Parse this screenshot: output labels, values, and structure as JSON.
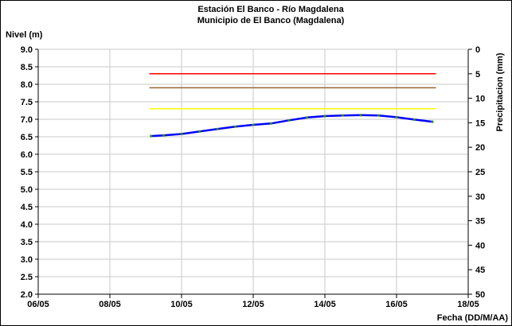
{
  "chart_data": {
    "type": "line",
    "title": "Estación El Banco - Río Magdalena",
    "subtitle": "Municipio de El Banco (Magdalena)",
    "ylabel_left": "Nivel (m)",
    "ylabel_right": "Precipitacion (mm)",
    "xlabel": "Fecha (DD/M/AA)",
    "x_ticks": [
      "06/05",
      "08/05",
      "10/05",
      "12/05",
      "14/05",
      "16/05",
      "18/05"
    ],
    "y_left_ticks": [
      "2.0",
      "2.5",
      "3.0",
      "3.5",
      "4.0",
      "4.5",
      "5.0",
      "5.5",
      "6.0",
      "6.5",
      "7.0",
      "7.5",
      "8.0",
      "8.5",
      "9.0"
    ],
    "y_right_ticks": [
      "0",
      "5",
      "10",
      "15",
      "20",
      "25",
      "30",
      "35",
      "40",
      "45",
      "50"
    ],
    "xlim_days": [
      6,
      18
    ],
    "ylim_left": [
      2.0,
      9.0
    ],
    "ylim_right_inverted": [
      0,
      50
    ],
    "grid": true,
    "thresholds": [
      {
        "value": 8.3,
        "color": "#ff0000"
      },
      {
        "value": 7.9,
        "color": "#996633"
      },
      {
        "value": 7.3,
        "color": "#ffff00"
      }
    ],
    "threshold_x_range": [
      9.1,
      17.1
    ],
    "series": [
      {
        "color": "#0000ff",
        "x": [
          9.15,
          9.5,
          10.0,
          10.5,
          11.0,
          11.5,
          12.0,
          12.5,
          13.0,
          13.5,
          14.0,
          14.5,
          15.0,
          15.5,
          16.0,
          16.5,
          17.0
        ],
        "y": [
          6.52,
          6.54,
          6.58,
          6.65,
          6.72,
          6.79,
          6.84,
          6.88,
          6.97,
          7.05,
          7.09,
          7.11,
          7.12,
          7.11,
          7.06,
          6.99,
          6.93
        ]
      }
    ]
  }
}
